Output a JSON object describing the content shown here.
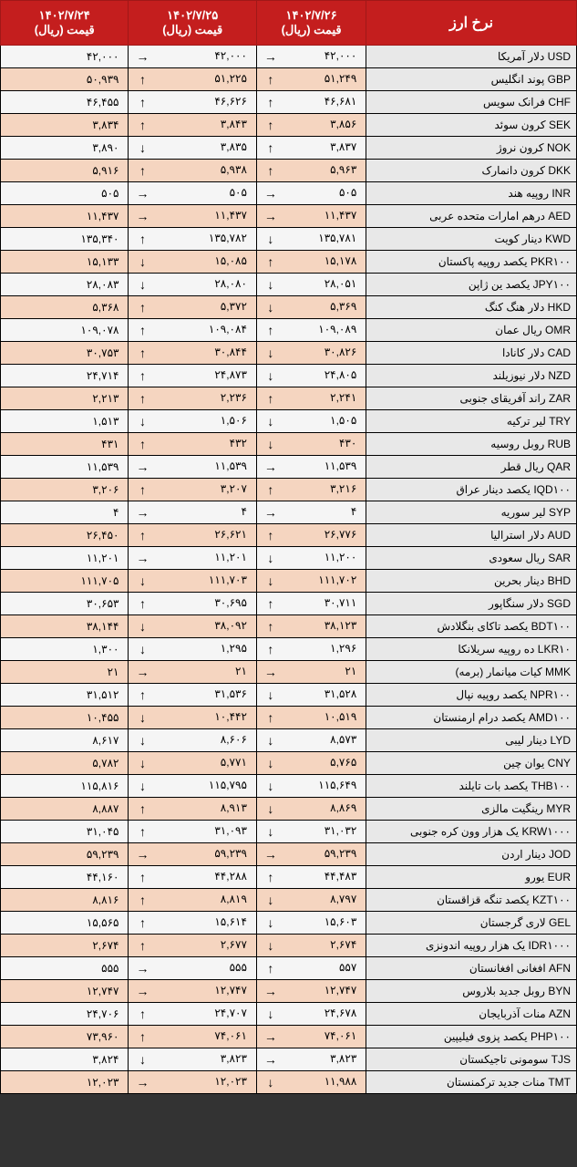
{
  "header": {
    "title": "نرخ ارز",
    "date1_line1": "۱۴۰۲/۷/۲۶",
    "date1_line2": "قیمت (ریال)",
    "date2_line1": "۱۴۰۲/۷/۲۵",
    "date2_line2": "قیمت (ریال)",
    "date3_line1": "۱۴۰۲/۷/۲۴",
    "date3_line2": "قیمت (ریال)"
  },
  "colors": {
    "header_bg": "#c41e1e",
    "header_text": "#ffffff",
    "row_odd": "#f5f5f5",
    "row_even": "#f5d5c0",
    "name_bg": "#e8e8e8",
    "border": "#000000"
  },
  "rows": [
    {
      "name": "USD دلار آمریکا",
      "p1": "۴۲,۰۰۰",
      "a1": "→",
      "p2": "۴۲,۰۰۰",
      "a2": "→",
      "p3": "۴۲,۰۰۰"
    },
    {
      "name": "GBP پوند انگلیس",
      "p1": "۵۱,۲۴۹",
      "a1": "↑",
      "p2": "۵۱,۲۲۵",
      "a2": "↑",
      "p3": "۵۰,۹۳۹"
    },
    {
      "name": "CHF فرانک سویس",
      "p1": "۴۶,۶۸۱",
      "a1": "↑",
      "p2": "۴۶,۶۲۶",
      "a2": "↑",
      "p3": "۴۶,۴۵۵"
    },
    {
      "name": "SEK کرون سوئد",
      "p1": "۳,۸۵۶",
      "a1": "↑",
      "p2": "۳,۸۴۳",
      "a2": "↑",
      "p3": "۳,۸۳۴"
    },
    {
      "name": "NOK کرون نروژ",
      "p1": "۳,۸۳۷",
      "a1": "↑",
      "p2": "۳,۸۳۵",
      "a2": "↓",
      "p3": "۳,۸۹۰"
    },
    {
      "name": "DKK کرون دانمارک",
      "p1": "۵,۹۶۳",
      "a1": "↑",
      "p2": "۵,۹۳۸",
      "a2": "↑",
      "p3": "۵,۹۱۶"
    },
    {
      "name": "INR روپیه هند",
      "p1": "۵۰۵",
      "a1": "→",
      "p2": "۵۰۵",
      "a2": "→",
      "p3": "۵۰۵"
    },
    {
      "name": "AED درهم امارات متحده عربی",
      "p1": "۱۱,۴۳۷",
      "a1": "→",
      "p2": "۱۱,۴۳۷",
      "a2": "→",
      "p3": "۱۱,۴۳۷"
    },
    {
      "name": "KWD دینار کویت",
      "p1": "۱۳۵,۷۸۱",
      "a1": "↓",
      "p2": "۱۳۵,۷۸۲",
      "a2": "↑",
      "p3": "۱۳۵,۳۴۰"
    },
    {
      "name": "PKR۱۰۰ یکصد روپیه پاکستان",
      "p1": "۱۵,۱۷۸",
      "a1": "↑",
      "p2": "۱۵,۰۸۵",
      "a2": "↓",
      "p3": "۱۵,۱۳۳"
    },
    {
      "name": "JPY۱۰۰ یکصد ین ژاپن",
      "p1": "۲۸,۰۵۱",
      "a1": "↓",
      "p2": "۲۸,۰۸۰",
      "a2": "↓",
      "p3": "۲۸,۰۸۳"
    },
    {
      "name": "HKD دلار هنگ کنگ",
      "p1": "۵,۳۶۹",
      "a1": "↓",
      "p2": "۵,۳۷۲",
      "a2": "↑",
      "p3": "۵,۳۶۸"
    },
    {
      "name": "OMR ریال عمان",
      "p1": "۱۰۹,۰۸۹",
      "a1": "↑",
      "p2": "۱۰۹,۰۸۴",
      "a2": "↑",
      "p3": "۱۰۹,۰۷۸"
    },
    {
      "name": "CAD دلار کانادا",
      "p1": "۳۰,۸۲۶",
      "a1": "↓",
      "p2": "۳۰,۸۴۴",
      "a2": "↑",
      "p3": "۳۰,۷۵۳"
    },
    {
      "name": "NZD دلار نیوزیلند",
      "p1": "۲۴,۸۰۵",
      "a1": "↓",
      "p2": "۲۴,۸۷۳",
      "a2": "↑",
      "p3": "۲۴,۷۱۴"
    },
    {
      "name": "ZAR راند آفریقای جنوبی",
      "p1": "۲,۲۴۱",
      "a1": "↑",
      "p2": "۲,۲۳۶",
      "a2": "↑",
      "p3": "۲,۲۱۳"
    },
    {
      "name": "TRY لیر ترکیه",
      "p1": "۱,۵۰۵",
      "a1": "↓",
      "p2": "۱,۵۰۶",
      "a2": "↓",
      "p3": "۱,۵۱۳"
    },
    {
      "name": "RUB روبل روسیه",
      "p1": "۴۳۰",
      "a1": "↓",
      "p2": "۴۳۲",
      "a2": "↑",
      "p3": "۴۳۱"
    },
    {
      "name": "QAR ریال قطر",
      "p1": "۱۱,۵۳۹",
      "a1": "→",
      "p2": "۱۱,۵۳۹",
      "a2": "→",
      "p3": "۱۱,۵۳۹"
    },
    {
      "name": "IQD۱۰۰ یکصد دینار عراق",
      "p1": "۳,۲۱۶",
      "a1": "↑",
      "p2": "۳,۲۰۷",
      "a2": "↑",
      "p3": "۳,۲۰۶"
    },
    {
      "name": "SYP لیر سوریه",
      "p1": "۴",
      "a1": "→",
      "p2": "۴",
      "a2": "→",
      "p3": "۴"
    },
    {
      "name": "AUD دلار استرالیا",
      "p1": "۲۶,۷۷۶",
      "a1": "↑",
      "p2": "۲۶,۶۲۱",
      "a2": "↑",
      "p3": "۲۶,۴۵۰"
    },
    {
      "name": "SAR ریال سعودی",
      "p1": "۱۱,۲۰۰",
      "a1": "↓",
      "p2": "۱۱,۲۰۱",
      "a2": "→",
      "p3": "۱۱,۲۰۱"
    },
    {
      "name": "BHD دینار بحرین",
      "p1": "۱۱۱,۷۰۲",
      "a1": "↓",
      "p2": "۱۱۱,۷۰۳",
      "a2": "↓",
      "p3": "۱۱۱,۷۰۵"
    },
    {
      "name": "SGD دلار سنگاپور",
      "p1": "۳۰,۷۱۱",
      "a1": "↑",
      "p2": "۳۰,۶۹۵",
      "a2": "↑",
      "p3": "۳۰,۶۵۳"
    },
    {
      "name": "BDT۱۰۰ یکصد تاکای بنگلادش",
      "p1": "۳۸,۱۲۳",
      "a1": "↑",
      "p2": "۳۸,۰۹۲",
      "a2": "↓",
      "p3": "۳۸,۱۴۴"
    },
    {
      "name": "LKR۱۰ ده روپیه سریلانکا",
      "p1": "۱,۲۹۶",
      "a1": "↑",
      "p2": "۱,۲۹۵",
      "a2": "↓",
      "p3": "۱,۳۰۰"
    },
    {
      "name": "MMK کیات میانمار (برمه)",
      "p1": "۲۱",
      "a1": "→",
      "p2": "۲۱",
      "a2": "→",
      "p3": "۲۱"
    },
    {
      "name": "NPR۱۰۰ یکصد روپیه نپال",
      "p1": "۳۱,۵۲۸",
      "a1": "↓",
      "p2": "۳۱,۵۳۶",
      "a2": "↑",
      "p3": "۳۱,۵۱۲"
    },
    {
      "name": "AMD۱۰۰ یکصد درام ارمنستان",
      "p1": "۱۰,۵۱۹",
      "a1": "↑",
      "p2": "۱۰,۴۴۲",
      "a2": "↓",
      "p3": "۱۰,۴۵۵"
    },
    {
      "name": "LYD دینار لیبی",
      "p1": "۸,۵۷۳",
      "a1": "↓",
      "p2": "۸,۶۰۶",
      "a2": "↓",
      "p3": "۸,۶۱۷"
    },
    {
      "name": "CNY یوان چین",
      "p1": "۵,۷۶۵",
      "a1": "↓",
      "p2": "۵,۷۷۱",
      "a2": "↓",
      "p3": "۵,۷۸۲"
    },
    {
      "name": "THB۱۰۰ یکصد بات تایلند",
      "p1": "۱۱۵,۶۴۹",
      "a1": "↓",
      "p2": "۱۱۵,۷۹۵",
      "a2": "↓",
      "p3": "۱۱۵,۸۱۶"
    },
    {
      "name": "MYR رینگیت مالزی",
      "p1": "۸,۸۶۹",
      "a1": "↓",
      "p2": "۸,۹۱۳",
      "a2": "↑",
      "p3": "۸,۸۸۷"
    },
    {
      "name": "KRW۱۰۰۰ یک هزار وون کره جنوبی",
      "p1": "۳۱,۰۳۲",
      "a1": "↓",
      "p2": "۳۱,۰۹۳",
      "a2": "↑",
      "p3": "۳۱,۰۴۵"
    },
    {
      "name": "JOD دینار اردن",
      "p1": "۵۹,۲۳۹",
      "a1": "→",
      "p2": "۵۹,۲۳۹",
      "a2": "→",
      "p3": "۵۹,۲۳۹"
    },
    {
      "name": "EUR یورو",
      "p1": "۴۴,۴۸۳",
      "a1": "↑",
      "p2": "۴۴,۲۸۸",
      "a2": "↑",
      "p3": "۴۴,۱۶۰"
    },
    {
      "name": "KZT۱۰۰ یکصد تنگه قزاقستان",
      "p1": "۸,۷۹۷",
      "a1": "↓",
      "p2": "۸,۸۱۹",
      "a2": "↑",
      "p3": "۸,۸۱۶"
    },
    {
      "name": "GEL لاری گرجستان",
      "p1": "۱۵,۶۰۳",
      "a1": "↓",
      "p2": "۱۵,۶۱۴",
      "a2": "↑",
      "p3": "۱۵,۵۶۵"
    },
    {
      "name": "IDR۱۰۰۰ یک هزار روپیه اندونزی",
      "p1": "۲,۶۷۴",
      "a1": "↓",
      "p2": "۲,۶۷۷",
      "a2": "↑",
      "p3": "۲,۶۷۴"
    },
    {
      "name": "AFN افغانی افغانستان",
      "p1": "۵۵۷",
      "a1": "↑",
      "p2": "۵۵۵",
      "a2": "→",
      "p3": "۵۵۵"
    },
    {
      "name": "BYN روبل جدید بلاروس",
      "p1": "۱۲,۷۴۷",
      "a1": "→",
      "p2": "۱۲,۷۴۷",
      "a2": "→",
      "p3": "۱۲,۷۴۷"
    },
    {
      "name": "AZN منات آذربایجان",
      "p1": "۲۴,۶۷۸",
      "a1": "↓",
      "p2": "۲۴,۷۰۷",
      "a2": "↑",
      "p3": "۲۴,۷۰۶"
    },
    {
      "name": "PHP۱۰۰ یکصد پزوی فیلیپین",
      "p1": "۷۴,۰۶۱",
      "a1": "→",
      "p2": "۷۴,۰۶۱",
      "a2": "↑",
      "p3": "۷۳,۹۶۰"
    },
    {
      "name": "TJS سومونی تاجیکستان",
      "p1": "۳,۸۲۳",
      "a1": "→",
      "p2": "۳,۸۲۳",
      "a2": "↓",
      "p3": "۳,۸۲۴"
    },
    {
      "name": "TMT منات جدید ترکمنستان",
      "p1": "۱۱,۹۸۸",
      "a1": "↓",
      "p2": "۱۲,۰۲۳",
      "a2": "→",
      "p3": "۱۲,۰۲۳"
    }
  ]
}
